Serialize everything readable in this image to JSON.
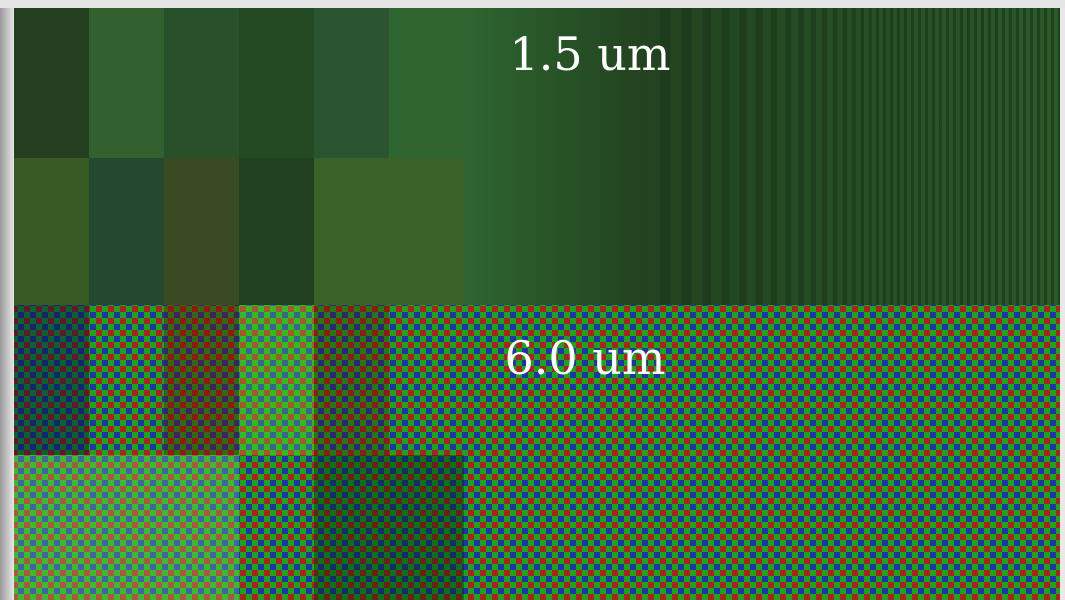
{
  "top_panel": {
    "label": "1.5 um"
  },
  "bottom_panel": {
    "label": "6.0 um"
  }
}
